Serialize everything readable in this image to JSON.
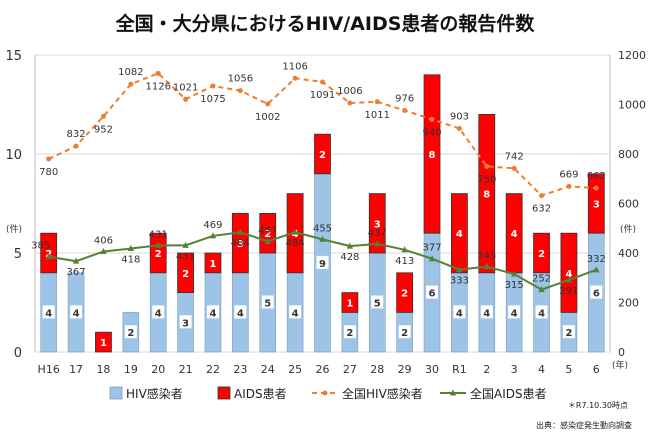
{
  "chart_data": {
    "type": "bar",
    "title": "全国・大分県におけるHIV/AIDS患者の報告件数",
    "categories": [
      "H16",
      "17",
      "18",
      "19",
      "20",
      "21",
      "22",
      "23",
      "24",
      "25",
      "26",
      "27",
      "28",
      "29",
      "30",
      "R1",
      "2",
      "3",
      "4",
      "5",
      "6"
    ],
    "x_unit": "(年)",
    "y_left": {
      "unit": "(件)",
      "min": 0,
      "max": 15,
      "ticks": [
        0,
        5,
        10,
        15
      ]
    },
    "y_right": {
      "unit": "(件)",
      "min": 0,
      "max": 1200,
      "ticks": [
        0,
        200,
        400,
        600,
        800,
        1000,
        1200
      ]
    },
    "series": [
      {
        "name": "HIV感染者",
        "type": "bar-stacked",
        "axis": "left",
        "color": "#9dc3e6",
        "values": [
          4,
          4,
          0,
          2,
          4,
          3,
          4,
          4,
          5,
          4,
          9,
          2,
          5,
          2,
          6,
          4,
          4,
          4,
          4,
          2,
          6
        ]
      },
      {
        "name": "AIDS患者",
        "type": "bar-stacked",
        "axis": "left",
        "color": "#ff0000",
        "values": [
          2,
          0,
          1,
          0,
          2,
          2,
          1,
          3,
          2,
          4,
          2,
          1,
          3,
          2,
          8,
          4,
          8,
          4,
          2,
          4,
          3
        ]
      },
      {
        "name": "全国HIV感染者",
        "type": "line-dashed",
        "axis": "right",
        "color": "#ed7d31",
        "values": [
          780,
          832,
          952,
          1082,
          1126,
          1021,
          1075,
          1056,
          1002,
          1106,
          1091,
          1006,
          1011,
          976,
          940,
          903,
          750,
          742,
          632,
          669,
          662
        ]
      },
      {
        "name": "全国AIDS患者",
        "type": "line",
        "axis": "right",
        "color": "#548235",
        "values": [
          385,
          367,
          406,
          418,
          431,
          431,
          469,
          484,
          447,
          484,
          455,
          428,
          437,
          413,
          377,
          333,
          345,
          315,
          252,
          291,
          332
        ]
      }
    ]
  },
  "note": "＊R7.10.30時点",
  "source": "出典：感染症発生動向調査"
}
